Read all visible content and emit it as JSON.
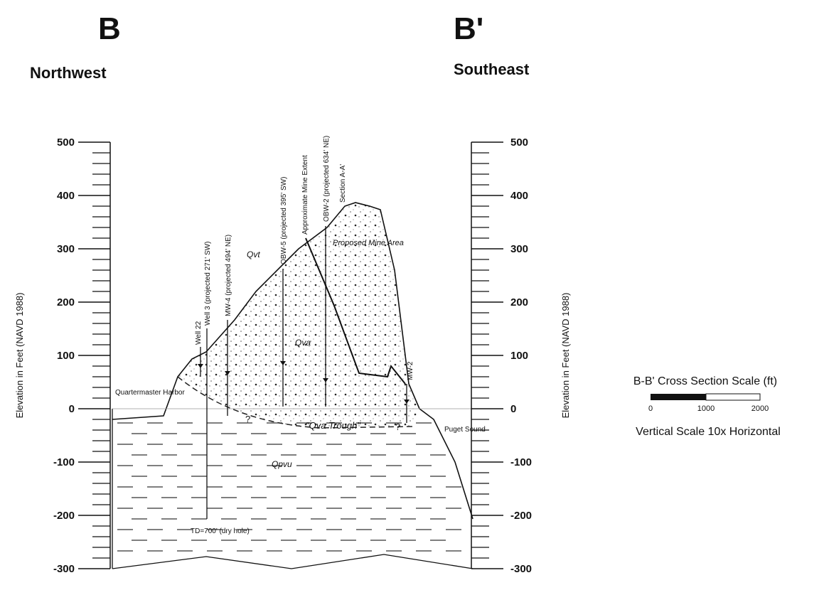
{
  "header": {
    "left_letter": "B",
    "right_letter": "B'",
    "left_direction": "Northwest",
    "right_direction": "Southeast"
  },
  "left_axis": {
    "title": "Elevation in Feet (NAVD 1988)",
    "ticks": [
      500,
      400,
      300,
      200,
      100,
      0,
      -100,
      -200,
      -300
    ]
  },
  "right_axis": {
    "title": "Elevation in Feet (NAVD 1988)",
    "ticks": [
      500,
      400,
      300,
      200,
      100,
      0,
      -100,
      -200,
      -300
    ]
  },
  "labels": {
    "harbor": "Quartermaster Harbor",
    "sound": "Puget Sound",
    "qvt": "Qvt",
    "qva": "Qva",
    "qpvu": "Qpvu",
    "trough": "\"Qva Trough\"",
    "mine_area": "Proposed Mine Area",
    "td": "TD=700' (dry hole)",
    "q1": "?",
    "q2": "?"
  },
  "wells": [
    {
      "label": "Well 22"
    },
    {
      "label": "Well 3 (projected 271' SW)"
    },
    {
      "label": "MW-4 (projected 494' NE)"
    },
    {
      "label": "OBW-5 (projected 395' SW)"
    },
    {
      "label": "Approximate Mine Extent"
    },
    {
      "label": "OBW-2 (projected 634' NE)"
    },
    {
      "label": "Section A-A'"
    },
    {
      "label": "MW-2"
    }
  ],
  "scale": {
    "title": "B-B' Cross Section Scale (ft)",
    "ticks": [
      "0",
      "1000",
      "2000"
    ],
    "note": "Vertical Scale 10x Horizontal"
  }
}
